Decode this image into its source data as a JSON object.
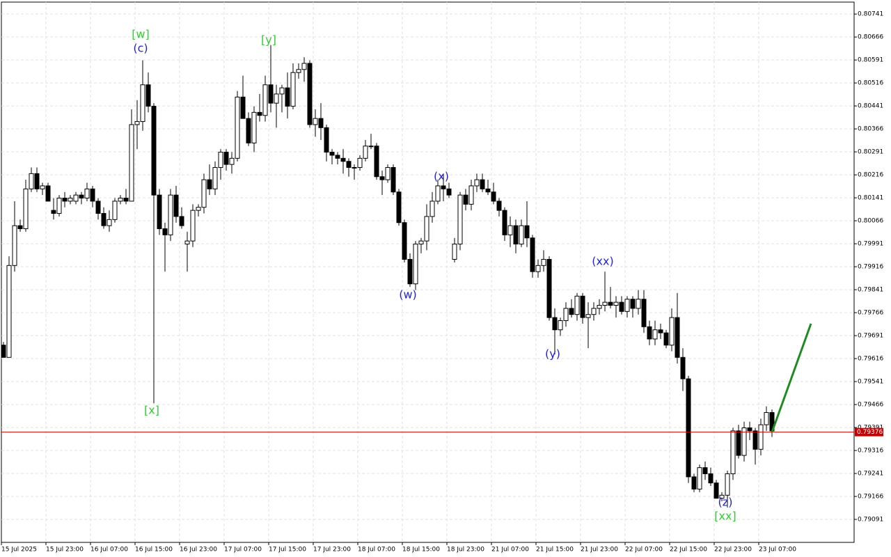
{
  "chart_data": {
    "type": "candlestick",
    "ylim": [
      0.79016,
      0.8078
    ],
    "yticks": [
      0.80741,
      0.80666,
      0.80591,
      0.80516,
      0.80441,
      0.80366,
      0.80291,
      0.80216,
      0.80141,
      0.80066,
      0.79991,
      0.79916,
      0.79841,
      0.79766,
      0.79691,
      0.79616,
      0.79541,
      0.79466,
      0.79391,
      0.79316,
      0.79241,
      0.79166,
      0.79091
    ],
    "x_labels": [
      "15 Jul 2025",
      "15 Jul 23:00",
      "16 Jul 07:00",
      "16 Jul 15:00",
      "16 Jul 23:00",
      "17 Jul 07:00",
      "17 Jul 15:00",
      "17 Jul 23:00",
      "18 Jul 07:00",
      "18 Jul 15:00",
      "18 Jul 23:00",
      "21 Jul 07:00",
      "21 Jul 15:00",
      "21 Jul 23:00",
      "22 Jul 07:00",
      "22 Jul 15:00",
      "22 Jul 23:00",
      "23 Jul 07:00"
    ],
    "grid": true,
    "up_color": "#ffffff",
    "down_color": "#000000",
    "current_price": 0.79376,
    "current_price_color": "#c80000",
    "projection_target": 0.7973,
    "projection_color": "#1e8c1e",
    "annotations": [
      {
        "text": "[w]",
        "color": "#32cd32"
      },
      {
        "text": "(c)",
        "color": "#2222dd"
      },
      {
        "text": "[y]",
        "color": "#32cd32"
      },
      {
        "text": "[x]",
        "color": "#32cd32"
      },
      {
        "text": "(x)",
        "color": "#2222dd"
      },
      {
        "text": "(w)",
        "color": "#2222dd"
      },
      {
        "text": "(y)",
        "color": "#2222dd"
      },
      {
        "text": "(xx)",
        "color": "#2222dd"
      },
      {
        "text": "(z)",
        "color": "#2222dd"
      },
      {
        "text": "[xx]",
        "color": "#32cd32"
      }
    ],
    "ohlc": [
      [
        0.7966,
        0.7967,
        0.7962,
        0.7962
      ],
      [
        0.7962,
        0.7995,
        0.7962,
        0.7992
      ],
      [
        0.7992,
        0.8013,
        0.799,
        0.8005
      ],
      [
        0.8005,
        0.8007,
        0.8003,
        0.8004
      ],
      [
        0.8004,
        0.802,
        0.8003,
        0.8017
      ],
      [
        0.8017,
        0.8024,
        0.8016,
        0.8022
      ],
      [
        0.8022,
        0.8024,
        0.8016,
        0.8017
      ],
      [
        0.8017,
        0.8019,
        0.8015,
        0.8018
      ],
      [
        0.8018,
        0.8019,
        0.8013,
        0.8013
      ],
      [
        0.801,
        0.8014,
        0.8007,
        0.8009
      ],
      [
        0.8009,
        0.8015,
        0.8008,
        0.8014
      ],
      [
        0.8014,
        0.8016,
        0.8011,
        0.8013
      ],
      [
        0.8013,
        0.8015,
        0.8012,
        0.8014
      ],
      [
        0.8013,
        0.8016,
        0.8012,
        0.8015
      ],
      [
        0.8015,
        0.8016,
        0.8012,
        0.8014
      ],
      [
        0.8014,
        0.8019,
        0.8013,
        0.8017
      ],
      [
        0.8017,
        0.8018,
        0.8011,
        0.8013
      ],
      [
        0.8013,
        0.8014,
        0.8007,
        0.8009
      ],
      [
        0.8009,
        0.8011,
        0.8004,
        0.8005
      ],
      [
        0.8005,
        0.801,
        0.8003,
        0.8007
      ],
      [
        0.8007,
        0.8014,
        0.8006,
        0.8013
      ],
      [
        0.8013,
        0.8015,
        0.8012,
        0.8014
      ],
      [
        0.8014,
        0.8017,
        0.8012,
        0.8013
      ],
      [
        0.8013,
        0.8043,
        0.8013,
        0.8038
      ],
      [
        0.8038,
        0.8046,
        0.803,
        0.8039
      ],
      [
        0.8039,
        0.8059,
        0.8036,
        0.8051
      ],
      [
        0.8051,
        0.8055,
        0.8042,
        0.8044
      ],
      [
        0.8044,
        0.8045,
        0.7947,
        0.8015
      ],
      [
        0.8015,
        0.8017,
        0.8002,
        0.8004
      ],
      [
        0.8004,
        0.8006,
        0.799,
        0.8002
      ],
      [
        0.8002,
        0.8017,
        0.8,
        0.8015
      ],
      [
        0.8015,
        0.8018,
        0.8006,
        0.8008
      ],
      [
        0.8008,
        0.8011,
        0.8004,
        0.8005
      ],
      [
        0.7999,
        0.8003,
        0.799,
        0.8
      ],
      [
        0.8,
        0.8012,
        0.7998,
        0.801
      ],
      [
        0.801,
        0.8012,
        0.8008,
        0.8011
      ],
      [
        0.8011,
        0.8022,
        0.8009,
        0.802
      ],
      [
        0.802,
        0.8025,
        0.8015,
        0.8017
      ],
      [
        0.8017,
        0.8026,
        0.8015,
        0.8024
      ],
      [
        0.8024,
        0.803,
        0.802,
        0.8029
      ],
      [
        0.8029,
        0.803,
        0.8023,
        0.8025
      ],
      [
        0.8025,
        0.8029,
        0.8022,
        0.8027
      ],
      [
        0.8027,
        0.8049,
        0.8026,
        0.8047
      ],
      [
        0.8047,
        0.8054,
        0.804,
        0.804
      ],
      [
        0.804,
        0.8042,
        0.8031,
        0.8032
      ],
      [
        0.8032,
        0.8044,
        0.8029,
        0.8042
      ],
      [
        0.8042,
        0.8048,
        0.8039,
        0.8041
      ],
      [
        0.8041,
        0.8054,
        0.8039,
        0.8051
      ],
      [
        0.8051,
        0.8064,
        0.8042,
        0.8045
      ],
      [
        0.8045,
        0.8051,
        0.8037,
        0.8048
      ],
      [
        0.8048,
        0.8051,
        0.8042,
        0.805
      ],
      [
        0.805,
        0.8055,
        0.804,
        0.8044
      ],
      [
        0.8044,
        0.8058,
        0.8043,
        0.8055
      ],
      [
        0.8055,
        0.8058,
        0.8053,
        0.8056
      ],
      [
        0.8056,
        0.806,
        0.8052,
        0.8058
      ],
      [
        0.8058,
        0.8059,
        0.8037,
        0.8038
      ],
      [
        0.8038,
        0.8043,
        0.8034,
        0.804
      ],
      [
        0.804,
        0.8045,
        0.8033,
        0.8037
      ],
      [
        0.8037,
        0.8038,
        0.8026,
        0.8029
      ],
      [
        0.8029,
        0.803,
        0.8025,
        0.8028
      ],
      [
        0.8028,
        0.8029,
        0.8025,
        0.8027
      ],
      [
        0.8027,
        0.803,
        0.8022,
        0.8026
      ],
      [
        0.8026,
        0.8027,
        0.8021,
        0.8024
      ],
      [
        0.8024,
        0.8025,
        0.802,
        0.8024
      ],
      [
        0.8024,
        0.8028,
        0.8023,
        0.8027
      ],
      [
        0.8027,
        0.8033,
        0.8026,
        0.8031
      ],
      [
        0.8031,
        0.8035,
        0.803,
        0.8031
      ],
      [
        0.8031,
        0.8032,
        0.802,
        0.8021
      ],
      [
        0.8021,
        0.8023,
        0.8015,
        0.802
      ],
      [
        0.802,
        0.8025,
        0.8019,
        0.8024
      ],
      [
        0.8024,
        0.8025,
        0.8015,
        0.8016
      ],
      [
        0.8016,
        0.8017,
        0.8005,
        0.8006
      ],
      [
        0.8006,
        0.8007,
        0.7993,
        0.7994
      ],
      [
        0.7994,
        0.7996,
        0.7985,
        0.7986
      ],
      [
        0.7986,
        0.8,
        0.7984,
        0.7999
      ],
      [
        0.7999,
        0.8001,
        0.7996,
        0.8
      ],
      [
        0.8,
        0.8012,
        0.7997,
        0.8008
      ],
      [
        0.8008,
        0.8016,
        0.8006,
        0.8013
      ],
      [
        0.8013,
        0.802,
        0.8012,
        0.8018
      ],
      [
        0.8018,
        0.8022,
        0.8013,
        0.8017
      ],
      [
        0.8017,
        0.8019,
        0.8014,
        0.8015
      ],
      [
        0.7994,
        0.8001,
        0.7993,
        0.7999
      ],
      [
        0.7999,
        0.8016,
        0.7997,
        0.8015
      ],
      [
        0.8015,
        0.8017,
        0.801,
        0.8012
      ],
      [
        0.8012,
        0.802,
        0.801,
        0.8018
      ],
      [
        0.8018,
        0.8022,
        0.8016,
        0.802
      ],
      [
        0.802,
        0.8022,
        0.8016,
        0.8017
      ],
      [
        0.8017,
        0.802,
        0.8015,
        0.8016
      ],
      [
        0.8016,
        0.8019,
        0.8012,
        0.8013
      ],
      [
        0.8013,
        0.8014,
        0.8008,
        0.801
      ],
      [
        0.801,
        0.8011,
        0.8,
        0.8002
      ],
      [
        0.8002,
        0.8008,
        0.7998,
        0.8005
      ],
      [
        0.8005,
        0.8007,
        0.7996,
        0.7999
      ],
      [
        0.7999,
        0.8007,
        0.7998,
        0.8005
      ],
      [
        0.8005,
        0.8013,
        0.7998,
        0.8001
      ],
      [
        0.8001,
        0.8002,
        0.7988,
        0.799
      ],
      [
        0.799,
        0.7994,
        0.7988,
        0.7992
      ],
      [
        0.7992,
        0.7997,
        0.799,
        0.7994
      ],
      [
        0.7994,
        0.7995,
        0.7974,
        0.7975
      ],
      [
        0.7975,
        0.7978,
        0.7963,
        0.7971
      ],
      [
        0.7971,
        0.7975,
        0.7969,
        0.7974
      ],
      [
        0.7974,
        0.798,
        0.7972,
        0.7978
      ],
      [
        0.7978,
        0.7981,
        0.7975,
        0.7976
      ],
      [
        0.7976,
        0.7983,
        0.7974,
        0.7982
      ],
      [
        0.7982,
        0.7983,
        0.7973,
        0.7975
      ],
      [
        0.7975,
        0.798,
        0.7965,
        0.7976
      ],
      [
        0.7976,
        0.798,
        0.7974,
        0.7978
      ],
      [
        0.7978,
        0.7981,
        0.7976,
        0.7979
      ],
      [
        0.7979,
        0.799,
        0.7977,
        0.798
      ],
      [
        0.798,
        0.7985,
        0.7978,
        0.7979
      ],
      [
        0.7979,
        0.7982,
        0.7975,
        0.798
      ],
      [
        0.798,
        0.7982,
        0.7976,
        0.7977
      ],
      [
        0.7977,
        0.7982,
        0.7975,
        0.7981
      ],
      [
        0.7981,
        0.7982,
        0.7975,
        0.7978
      ],
      [
        0.7978,
        0.7984,
        0.7976,
        0.7981
      ],
      [
        0.7981,
        0.7984,
        0.797,
        0.7972
      ],
      [
        0.7972,
        0.7974,
        0.7966,
        0.7968
      ],
      [
        0.7968,
        0.7974,
        0.7966,
        0.7971
      ],
      [
        0.7971,
        0.7973,
        0.7968,
        0.797
      ],
      [
        0.797,
        0.7971,
        0.7965,
        0.7966
      ],
      [
        0.7966,
        0.7978,
        0.7964,
        0.7975
      ],
      [
        0.7975,
        0.7983,
        0.796,
        0.7962
      ],
      [
        0.7962,
        0.7965,
        0.7951,
        0.7955
      ],
      [
        0.7955,
        0.7956,
        0.7921,
        0.7923
      ],
      [
        0.7923,
        0.7924,
        0.7918,
        0.7919
      ],
      [
        0.7919,
        0.7927,
        0.7918,
        0.7926
      ],
      [
        0.7926,
        0.7928,
        0.7922,
        0.7924
      ],
      [
        0.7924,
        0.7926,
        0.792,
        0.7921
      ],
      [
        0.7921,
        0.7922,
        0.7916,
        0.7916
      ],
      [
        0.7916,
        0.7918,
        0.7915,
        0.7917
      ],
      [
        0.7917,
        0.7925,
        0.7913,
        0.7924
      ],
      [
        0.7924,
        0.7939,
        0.7922,
        0.7938
      ],
      [
        0.7938,
        0.794,
        0.7929,
        0.793
      ],
      [
        0.793,
        0.7941,
        0.7928,
        0.7939
      ],
      [
        0.7939,
        0.7941,
        0.7935,
        0.7938
      ],
      [
        0.7938,
        0.7939,
        0.7927,
        0.7932
      ],
      [
        0.7932,
        0.7942,
        0.793,
        0.794
      ],
      [
        0.794,
        0.7946,
        0.7938,
        0.7944
      ],
      [
        0.7944,
        0.7945,
        0.7936,
        0.7938
      ]
    ]
  }
}
